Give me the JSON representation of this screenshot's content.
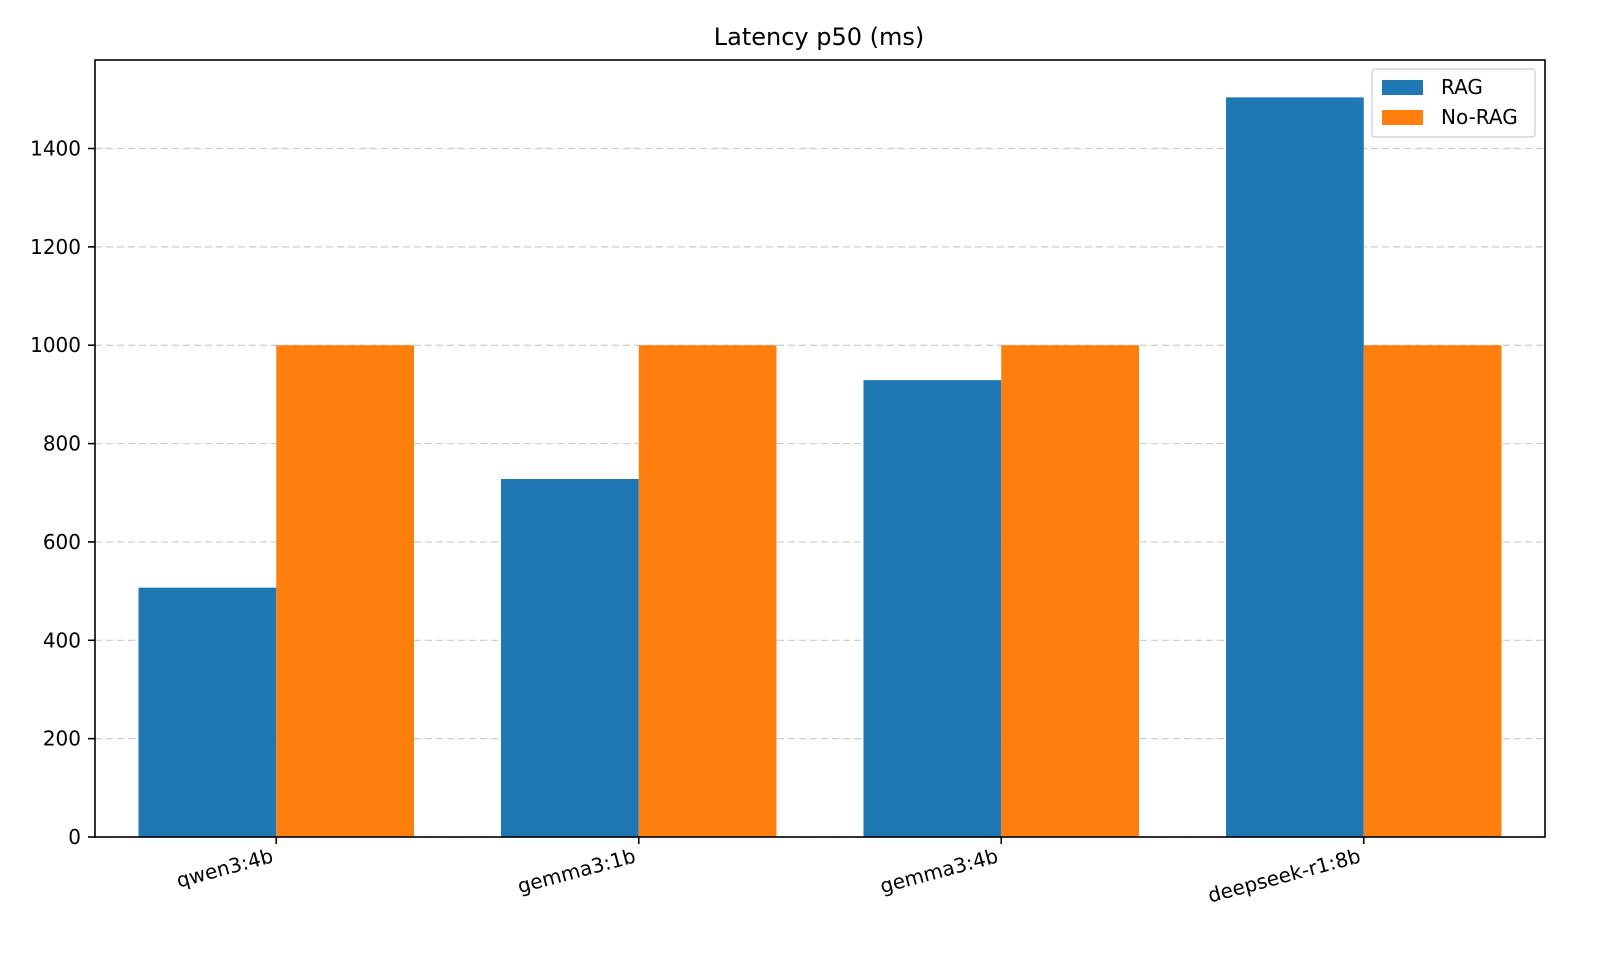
{
  "chart_data": {
    "type": "bar",
    "title": "Latency p50 (ms)",
    "xlabel": "",
    "ylabel": "",
    "categories": [
      "qwen3:4b",
      "gemma3:1b",
      "gemma3:4b",
      "deepseek-r1:8b"
    ],
    "series": [
      {
        "name": "RAG",
        "values": [
          507,
          728,
          929,
          1504
        ],
        "color": "#1f77b4"
      },
      {
        "name": "No-RAG",
        "values": [
          1000,
          1000,
          1000,
          1000
        ],
        "color": "#ff7f0e"
      }
    ],
    "ylim": [
      0,
      1580
    ],
    "yticks": [
      0,
      200,
      400,
      600,
      800,
      1000,
      1200,
      1400
    ],
    "grid": "y-dashed",
    "legend_position": "upper right"
  }
}
